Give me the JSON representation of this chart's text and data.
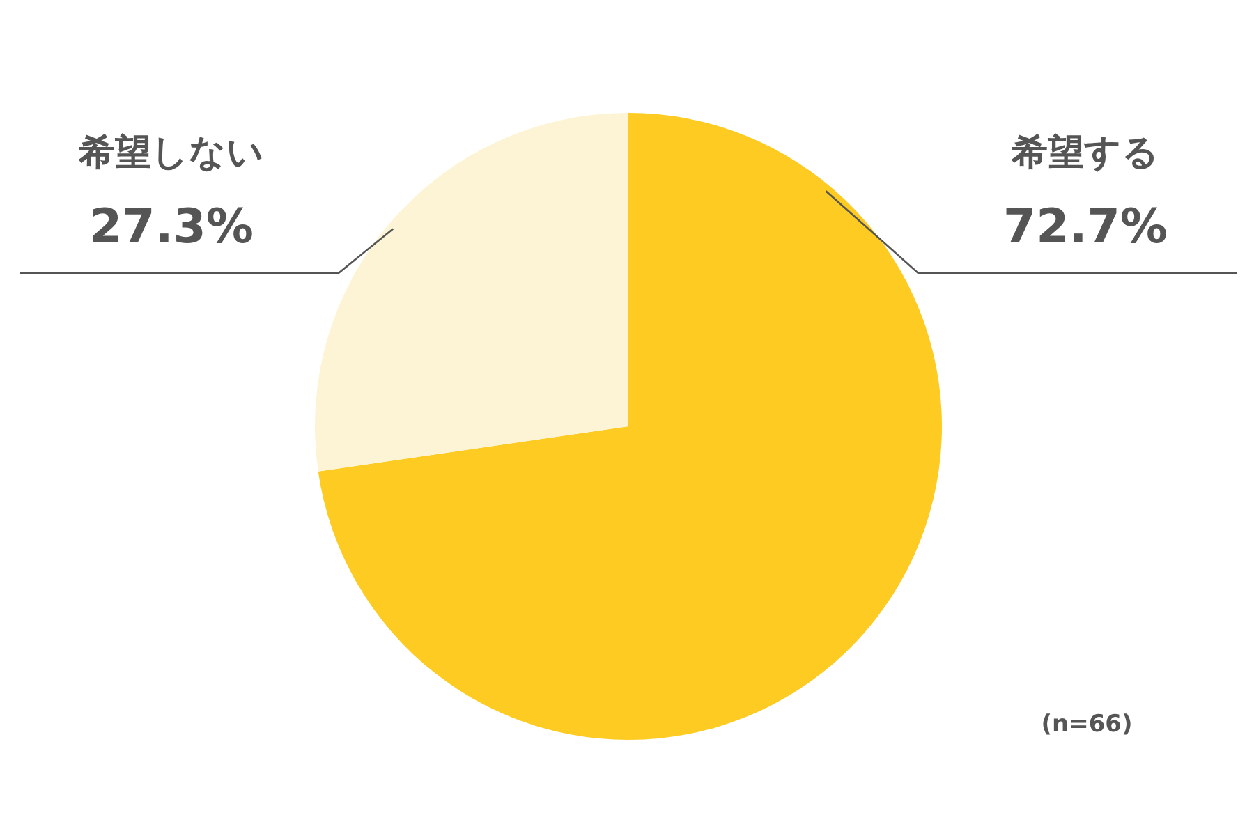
{
  "chart_data": {
    "type": "pie",
    "categories": [
      "希望する",
      "希望しない"
    ],
    "values": [
      72.7,
      27.3
    ],
    "colors": [
      "#fdcb22",
      "#fdf4d6"
    ],
    "value_labels": [
      "72.7%",
      "27.3%"
    ],
    "annotations": [
      "(n=66)"
    ]
  }
}
